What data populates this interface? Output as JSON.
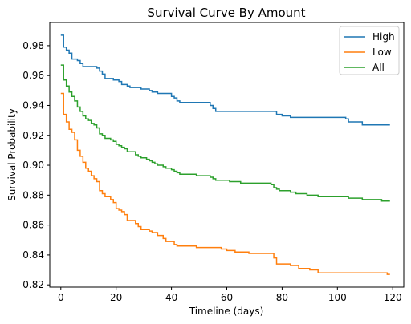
{
  "chart_data": {
    "type": "line",
    "title": "Survival Curve By Amount",
    "xlabel": "Timeline (days)",
    "ylabel": "Survival Probability",
    "xlim": [
      -4,
      124
    ],
    "ylim": [
      0.8185,
      0.9955
    ],
    "xticks": [
      0,
      20,
      40,
      60,
      80,
      100,
      120
    ],
    "yticks": [
      0.82,
      0.84,
      0.86,
      0.88,
      0.9,
      0.92,
      0.94,
      0.96,
      0.98
    ],
    "ytick_labels": [
      "0.82",
      "0.84",
      "0.86",
      "0.88",
      "0.90",
      "0.92",
      "0.94",
      "0.96",
      "0.98"
    ],
    "grid": false,
    "legend_position": "top-right",
    "series": [
      {
        "name": "High",
        "color": "#1f77b4",
        "points": [
          [
            0,
            0.987
          ],
          [
            1,
            0.979
          ],
          [
            2,
            0.977
          ],
          [
            3,
            0.975
          ],
          [
            4,
            0.971
          ],
          [
            5,
            0.971
          ],
          [
            6,
            0.97
          ],
          [
            7,
            0.968
          ],
          [
            8,
            0.966
          ],
          [
            12,
            0.966
          ],
          [
            13,
            0.965
          ],
          [
            14,
            0.963
          ],
          [
            15,
            0.961
          ],
          [
            16,
            0.958
          ],
          [
            18,
            0.958
          ],
          [
            19,
            0.957
          ],
          [
            20,
            0.957
          ],
          [
            21,
            0.956
          ],
          [
            22,
            0.954
          ],
          [
            24,
            0.953
          ],
          [
            25,
            0.952
          ],
          [
            28,
            0.952
          ],
          [
            29,
            0.951
          ],
          [
            31,
            0.951
          ],
          [
            32,
            0.95
          ],
          [
            33,
            0.949
          ],
          [
            35,
            0.948
          ],
          [
            39,
            0.948
          ],
          [
            40,
            0.946
          ],
          [
            41,
            0.945
          ],
          [
            42,
            0.943
          ],
          [
            43,
            0.942
          ],
          [
            52,
            0.942
          ],
          [
            54,
            0.94
          ],
          [
            55,
            0.938
          ],
          [
            56,
            0.936
          ],
          [
            76,
            0.936
          ],
          [
            78,
            0.934
          ],
          [
            80,
            0.933
          ],
          [
            82,
            0.933
          ],
          [
            83,
            0.932
          ],
          [
            101,
            0.932
          ],
          [
            103,
            0.931
          ],
          [
            104,
            0.929
          ],
          [
            108,
            0.929
          ],
          [
            109,
            0.927
          ],
          [
            119,
            0.927
          ]
        ]
      },
      {
        "name": "Low",
        "color": "#ff7f0e",
        "points": [
          [
            0,
            0.948
          ],
          [
            1,
            0.934
          ],
          [
            2,
            0.929
          ],
          [
            3,
            0.924
          ],
          [
            4,
            0.922
          ],
          [
            5,
            0.917
          ],
          [
            6,
            0.91
          ],
          [
            7,
            0.906
          ],
          [
            8,
            0.902
          ],
          [
            9,
            0.898
          ],
          [
            10,
            0.896
          ],
          [
            11,
            0.893
          ],
          [
            12,
            0.891
          ],
          [
            13,
            0.889
          ],
          [
            14,
            0.883
          ],
          [
            15,
            0.881
          ],
          [
            16,
            0.879
          ],
          [
            17,
            0.879
          ],
          [
            18,
            0.877
          ],
          [
            19,
            0.875
          ],
          [
            20,
            0.871
          ],
          [
            21,
            0.87
          ],
          [
            22,
            0.869
          ],
          [
            23,
            0.867
          ],
          [
            24,
            0.863
          ],
          [
            26,
            0.863
          ],
          [
            27,
            0.861
          ],
          [
            28,
            0.859
          ],
          [
            29,
            0.857
          ],
          [
            31,
            0.857
          ],
          [
            32,
            0.856
          ],
          [
            33,
            0.855
          ],
          [
            35,
            0.853
          ],
          [
            37,
            0.851
          ],
          [
            38,
            0.849
          ],
          [
            40,
            0.849
          ],
          [
            41,
            0.847
          ],
          [
            42,
            0.846
          ],
          [
            48,
            0.846
          ],
          [
            49,
            0.845
          ],
          [
            56,
            0.845
          ],
          [
            58,
            0.844
          ],
          [
            59,
            0.844
          ],
          [
            60,
            0.843
          ],
          [
            62,
            0.843
          ],
          [
            63,
            0.842
          ],
          [
            67,
            0.842
          ],
          [
            68,
            0.841
          ],
          [
            76,
            0.841
          ],
          [
            77,
            0.838
          ],
          [
            78,
            0.834
          ],
          [
            82,
            0.834
          ],
          [
            83,
            0.833
          ],
          [
            85,
            0.833
          ],
          [
            86,
            0.831
          ],
          [
            89,
            0.831
          ],
          [
            90,
            0.83
          ],
          [
            92,
            0.83
          ],
          [
            93,
            0.828
          ],
          [
            117,
            0.828
          ],
          [
            118,
            0.827
          ],
          [
            119,
            0.827
          ]
        ]
      },
      {
        "name": "All",
        "color": "#2ca02c",
        "points": [
          [
            0,
            0.967
          ],
          [
            1,
            0.957
          ],
          [
            2,
            0.953
          ],
          [
            3,
            0.949
          ],
          [
            4,
            0.946
          ],
          [
            5,
            0.943
          ],
          [
            6,
            0.939
          ],
          [
            7,
            0.936
          ],
          [
            8,
            0.933
          ],
          [
            9,
            0.931
          ],
          [
            10,
            0.93
          ],
          [
            11,
            0.928
          ],
          [
            12,
            0.927
          ],
          [
            13,
            0.925
          ],
          [
            14,
            0.921
          ],
          [
            15,
            0.92
          ],
          [
            16,
            0.918
          ],
          [
            18,
            0.917
          ],
          [
            19,
            0.916
          ],
          [
            20,
            0.914
          ],
          [
            21,
            0.913
          ],
          [
            22,
            0.912
          ],
          [
            23,
            0.911
          ],
          [
            24,
            0.909
          ],
          [
            26,
            0.909
          ],
          [
            27,
            0.907
          ],
          [
            28,
            0.906
          ],
          [
            29,
            0.905
          ],
          [
            31,
            0.904
          ],
          [
            32,
            0.903
          ],
          [
            33,
            0.902
          ],
          [
            34,
            0.901
          ],
          [
            35,
            0.9
          ],
          [
            37,
            0.899
          ],
          [
            38,
            0.898
          ],
          [
            40,
            0.897
          ],
          [
            41,
            0.896
          ],
          [
            42,
            0.895
          ],
          [
            43,
            0.894
          ],
          [
            48,
            0.894
          ],
          [
            49,
            0.893
          ],
          [
            52,
            0.893
          ],
          [
            54,
            0.892
          ],
          [
            55,
            0.891
          ],
          [
            56,
            0.89
          ],
          [
            60,
            0.89
          ],
          [
            61,
            0.889
          ],
          [
            64,
            0.889
          ],
          [
            65,
            0.888
          ],
          [
            69,
            0.888
          ],
          [
            70,
            0.888
          ],
          [
            76,
            0.887
          ],
          [
            77,
            0.885
          ],
          [
            78,
            0.884
          ],
          [
            79,
            0.883
          ],
          [
            82,
            0.883
          ],
          [
            83,
            0.882
          ],
          [
            85,
            0.881
          ],
          [
            88,
            0.881
          ],
          [
            89,
            0.88
          ],
          [
            92,
            0.88
          ],
          [
            93,
            0.879
          ],
          [
            101,
            0.879
          ],
          [
            102,
            0.879
          ],
          [
            104,
            0.878
          ],
          [
            108,
            0.878
          ],
          [
            109,
            0.877
          ],
          [
            115,
            0.877
          ],
          [
            116,
            0.876
          ],
          [
            119,
            0.876
          ]
        ]
      }
    ]
  }
}
